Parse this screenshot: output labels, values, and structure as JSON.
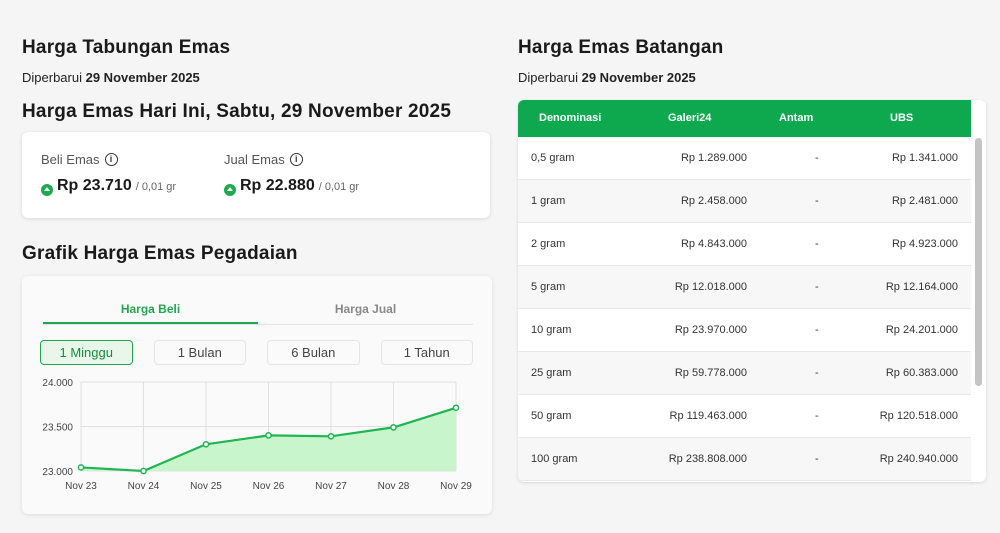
{
  "tabungan": {
    "title": "Harga Tabungan Emas",
    "updated_prefix": "Diperbarui",
    "updated_date": "29 November 2025",
    "today_title": "Harga Emas Hari Ini, Sabtu, 29 November 2025",
    "beli": {
      "label": "Beli Emas",
      "value": "Rp 23.710",
      "unit": "/ 0,01 gr"
    },
    "jual": {
      "label": "Jual Emas",
      "value": "Rp 22.880",
      "unit": "/ 0,01 gr"
    },
    "info_glyph": "i"
  },
  "grafik": {
    "title": "Grafik Harga Emas Pegadaian",
    "tabs": [
      "Harga Beli",
      "Harga Jual"
    ],
    "ranges": [
      "1 Minggu",
      "1 Bulan",
      "6 Bulan",
      "1 Tahun"
    ],
    "active_tab": 0,
    "active_range": 0
  },
  "chart_data": {
    "type": "area",
    "x": [
      "Nov 23",
      "Nov 24",
      "Nov 25",
      "Nov 26",
      "Nov 27",
      "Nov 28",
      "Nov 29"
    ],
    "series": [
      {
        "values": [
          23040,
          23000,
          23300,
          23400,
          23390,
          23490,
          23710
        ]
      }
    ],
    "y_ticks": [
      24000,
      23500,
      23000
    ],
    "y_tick_labels": [
      "24.000",
      "23.500",
      "23.000"
    ],
    "ylim": [
      23000,
      24000
    ],
    "grid": true,
    "colors": {
      "line": "#1fb550",
      "fill": "#c9f5cc"
    }
  },
  "batangan": {
    "title": "Harga Emas Batangan",
    "updated_prefix": "Diperbarui",
    "updated_date": "29 November 2025",
    "headers": [
      "Denominasi",
      "Galeri24",
      "Antam",
      "UBS"
    ],
    "rows": [
      [
        "0,5 gram",
        "Rp 1.289.000",
        "-",
        "Rp 1.341.000"
      ],
      [
        "1 gram",
        "Rp 2.458.000",
        "-",
        "Rp 2.481.000"
      ],
      [
        "2 gram",
        "Rp 4.843.000",
        "-",
        "Rp 4.923.000"
      ],
      [
        "5 gram",
        "Rp 12.018.000",
        "-",
        "Rp 12.164.000"
      ],
      [
        "10 gram",
        "Rp 23.970.000",
        "-",
        "Rp 24.201.000"
      ],
      [
        "25 gram",
        "Rp 59.778.000",
        "-",
        "Rp 60.383.000"
      ],
      [
        "50 gram",
        "Rp 119.463.000",
        "-",
        "Rp 120.518.000"
      ],
      [
        "100 gram",
        "Rp 238.808.000",
        "-",
        "Rp 240.940.000"
      ]
    ]
  },
  "colors": {
    "accent": "#1fa84f",
    "header_bg": "#0ea84f"
  }
}
